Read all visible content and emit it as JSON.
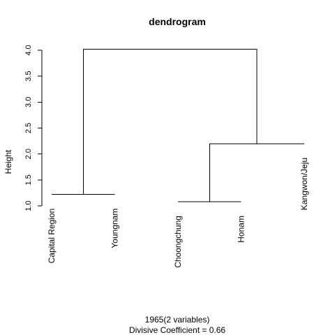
{
  "chart_data": {
    "type": "dendrogram",
    "title": "dendrogram",
    "ylabel": "Height",
    "xlabel": "1965(2 variables)",
    "subtitle": "Divisive Coefficient =  0.66",
    "ylim": [
      1.0,
      4.0
    ],
    "yticks": [
      "1.0",
      "1.5",
      "2.0",
      "2.5",
      "3.0",
      "3.5",
      "4.0"
    ],
    "leaves": [
      "Capital Region",
      "Youngnam",
      "Choongchung",
      "Honam",
      "Kangwon/Jeju"
    ],
    "leaf_bottom_heights": [
      1.22,
      1.22,
      1.08,
      1.08,
      2.2
    ],
    "merges": [
      {
        "left": "leaf:1",
        "right": "leaf:2",
        "height": 1.22
      },
      {
        "left": "leaf:3",
        "right": "leaf:4",
        "height": 1.08
      },
      {
        "left": "merge:2",
        "right": "leaf:5",
        "height": 2.2
      },
      {
        "left": "merge:1",
        "right": "merge:3",
        "height": 4.02
      }
    ]
  }
}
